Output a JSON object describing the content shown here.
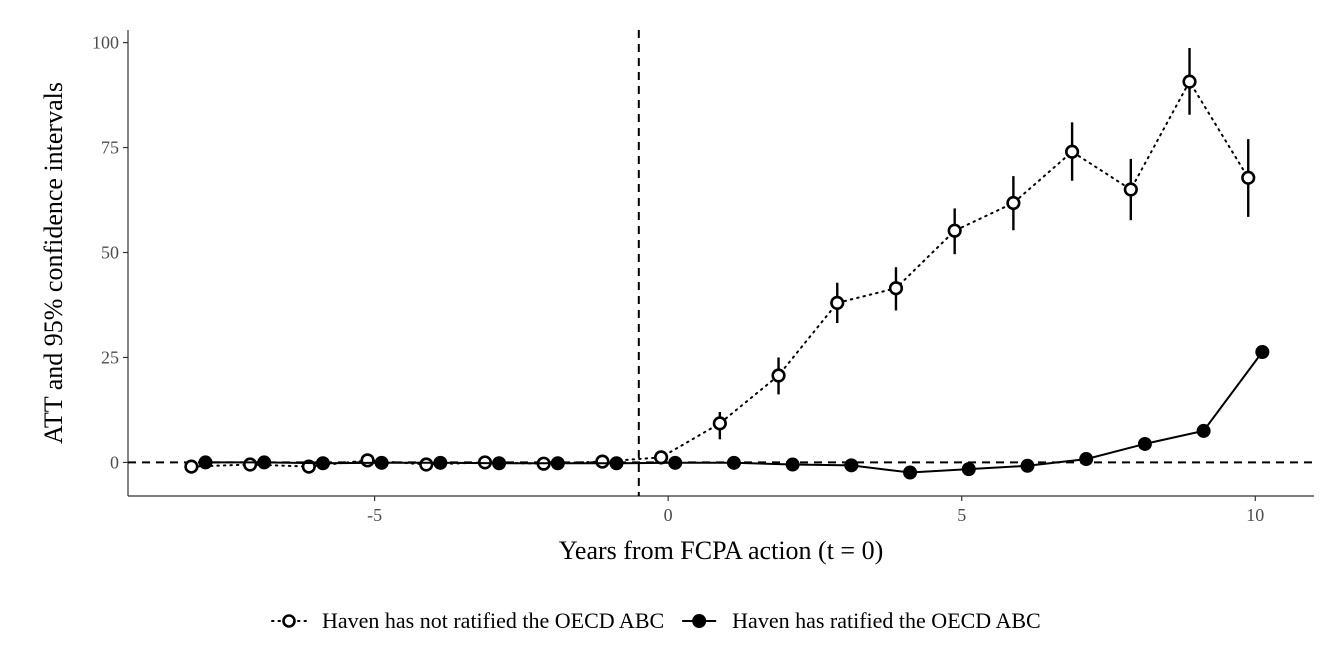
{
  "chart_data": {
    "type": "line",
    "xlabel": "Years from FCPA action (t = 0)",
    "ylabel": "ATT and 95% confidence intervals",
    "xlim": [
      -9.2,
      11.0
    ],
    "ylim": [
      -8,
      103
    ],
    "x_ticks": [
      -5,
      0,
      5,
      10
    ],
    "x_tick_labels": [
      "-5",
      "0",
      "5",
      "10"
    ],
    "y_ticks": [
      0,
      25,
      50,
      75,
      100
    ],
    "y_tick_labels": [
      "0",
      "25",
      "50",
      "75",
      "100"
    ],
    "reference_lines": {
      "vertical_x": -0.5,
      "horizontal_y": 0
    },
    "grid": false,
    "legend_position": "bottom",
    "series": [
      {
        "name": "Haven has not ratified the OECD ABC",
        "marker": "open-circle",
        "line": "dotted",
        "x": [
          -8,
          -7,
          -6,
          -5,
          -4,
          -3,
          -2,
          -1,
          0,
          1,
          2,
          3,
          4,
          5,
          6,
          7,
          8,
          9,
          10
        ],
        "values": [
          -1,
          -0.5,
          -1,
          0.5,
          -0.5,
          0,
          -0.3,
          0.2,
          1.2,
          9.3,
          20.7,
          38,
          41.5,
          55.2,
          61.8,
          74,
          65,
          90.7,
          67.8
        ],
        "ci_lower": [
          null,
          null,
          null,
          null,
          null,
          null,
          null,
          null,
          null,
          5.5,
          16.2,
          33.2,
          36.2,
          49.6,
          55.3,
          67.1,
          57.7,
          82.8,
          58.5
        ],
        "ci_upper": [
          null,
          null,
          null,
          null,
          null,
          null,
          null,
          null,
          null,
          12,
          25,
          42.8,
          46.5,
          60.5,
          68.2,
          81,
          72.3,
          98.7,
          77
        ]
      },
      {
        "name": "Haven has ratified the OECD ABC",
        "marker": "filled-circle",
        "line": "solid",
        "x": [
          -8,
          -7,
          -6,
          -5,
          -4,
          -3,
          -2,
          -1,
          0,
          1,
          2,
          3,
          4,
          5,
          6,
          7,
          8,
          9,
          10
        ],
        "values": [
          0,
          0,
          -0.2,
          -0.1,
          -0.1,
          -0.2,
          -0.2,
          -0.2,
          -0.1,
          -0.1,
          -0.5,
          -0.7,
          -2.4,
          -1.6,
          -0.8,
          0.8,
          4.4,
          7.5,
          26.3
        ]
      }
    ]
  }
}
